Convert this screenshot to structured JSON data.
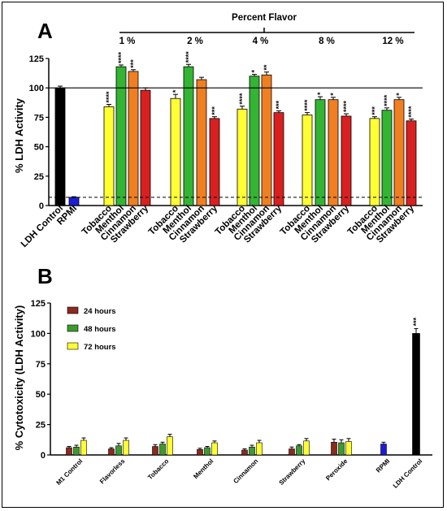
{
  "chart_data": [
    {
      "panel": "A",
      "type": "bar",
      "ylabel": "% LDH Activity",
      "ylim": [
        0,
        125
      ],
      "yticks": [
        0,
        25,
        50,
        75,
        100,
        125
      ],
      "reference_line": 100,
      "dashed_line": 7,
      "top_axis_title": "Percent Flavor",
      "groups": [
        {
          "label": "",
          "bars": [
            {
              "category": "LDH Control",
              "value": 100,
              "error": 1.5,
              "color": "#000000",
              "stars": ""
            },
            {
              "category": "RPMI",
              "value": 7,
              "error": 0.5,
              "color": "#1c1cd6",
              "stars": ""
            }
          ]
        },
        {
          "label": "1 %",
          "bars": [
            {
              "category": "Tobacco",
              "value": 84,
              "error": 2,
              "color": "#ffff33",
              "stars": "****"
            },
            {
              "category": "Menthol",
              "value": 118,
              "error": 1.5,
              "color": "#33b533",
              "stars": "****"
            },
            {
              "category": "Cinnamon",
              "value": 114,
              "error": 1.5,
              "color": "#f07f22",
              "stars": "***"
            },
            {
              "category": "Strawberry",
              "value": 98,
              "error": 2,
              "color": "#d92020",
              "stars": ""
            }
          ]
        },
        {
          "label": "2 %",
          "bars": [
            {
              "category": "Tobacco",
              "value": 91,
              "error": 3.5,
              "color": "#ffff33",
              "stars": "*"
            },
            {
              "category": "Menthol",
              "value": 118,
              "error": 2,
              "color": "#33b533",
              "stars": "****"
            },
            {
              "category": "Cinnamon",
              "value": 107,
              "error": 2,
              "color": "#f07f22",
              "stars": ""
            },
            {
              "category": "Strawberry",
              "value": 74,
              "error": 1.5,
              "color": "#d92020",
              "stars": "***"
            }
          ]
        },
        {
          "label": "4 %",
          "bars": [
            {
              "category": "Tobacco",
              "value": 82,
              "error": 2.5,
              "color": "#ffff33",
              "stars": "****"
            },
            {
              "category": "Menthol",
              "value": 110,
              "error": 1.5,
              "color": "#33b533",
              "stars": "*"
            },
            {
              "category": "Cinnamon",
              "value": 111,
              "error": 2.5,
              "color": "#f07f22",
              "stars": "**"
            },
            {
              "category": "Strawberry",
              "value": 79,
              "error": 1.5,
              "color": "#d92020",
              "stars": "***"
            }
          ]
        },
        {
          "label": "8 %",
          "bars": [
            {
              "category": "Tobacco",
              "value": 77,
              "error": 2,
              "color": "#ffff33",
              "stars": "****"
            },
            {
              "category": "Menthol",
              "value": 90,
              "error": 2.5,
              "color": "#33b533",
              "stars": "*"
            },
            {
              "category": "Cinnamon",
              "value": 90,
              "error": 2,
              "color": "#f07f22",
              "stars": "*"
            },
            {
              "category": "Strawberry",
              "value": 76,
              "error": 2,
              "color": "#d92020",
              "stars": "****"
            }
          ]
        },
        {
          "label": "12 %",
          "bars": [
            {
              "category": "Tobacco",
              "value": 74,
              "error": 1.5,
              "color": "#ffff33",
              "stars": "***"
            },
            {
              "category": "Menthol",
              "value": 81,
              "error": 2,
              "color": "#33b533",
              "stars": "****"
            },
            {
              "category": "Cinnamon",
              "value": 90,
              "error": 2,
              "color": "#f07f22",
              "stars": "*"
            },
            {
              "category": "Strawberry",
              "value": 72,
              "error": 1.5,
              "color": "#d92020",
              "stars": "****"
            }
          ]
        }
      ]
    },
    {
      "panel": "B",
      "type": "bar",
      "ylabel": "% Cytotoxicity (LDH Activity)",
      "ylim": [
        0,
        125
      ],
      "yticks": [
        0,
        25,
        50,
        75,
        100,
        125
      ],
      "series": [
        {
          "name": "24 hours",
          "color": "#8b2a1e"
        },
        {
          "name": "48 hours",
          "color": "#3c9a2e"
        },
        {
          "name": "72 hours",
          "color": "#ffff33"
        }
      ],
      "categories": [
        {
          "label": "M1 Control",
          "values": [
            6,
            6.5,
            12
          ],
          "errors": [
            1,
            1.5,
            2
          ]
        },
        {
          "label": "Flavorless",
          "values": [
            5,
            7.5,
            12
          ],
          "errors": [
            1,
            2,
            2
          ]
        },
        {
          "label": "Tobacco",
          "values": [
            7,
            9,
            15
          ],
          "errors": [
            1.5,
            1.5,
            2
          ]
        },
        {
          "label": "Menthol",
          "values": [
            4.5,
            6,
            10
          ],
          "errors": [
            1,
            1,
            1.5
          ]
        },
        {
          "label": "Cinnamon",
          "values": [
            4,
            6.5,
            10
          ],
          "errors": [
            1,
            1.5,
            2
          ]
        },
        {
          "label": "Strawberry",
          "values": [
            5,
            7.5,
            11.5
          ],
          "errors": [
            1.5,
            1,
            2
          ]
        },
        {
          "label": "Peroxide",
          "values": [
            10.5,
            10,
            11
          ],
          "errors": [
            2.5,
            2.5,
            2.5
          ]
        },
        {
          "label": "RPMI",
          "values": [
            9
          ],
          "errors": [
            1.5
          ],
          "color": "#1c1cd6"
        },
        {
          "label": "LDH Control",
          "values": [
            100
          ],
          "errors": [
            4
          ],
          "color": "#000000",
          "stars": "***"
        }
      ]
    }
  ],
  "panel_labels": {
    "a": "A",
    "b": "B"
  }
}
